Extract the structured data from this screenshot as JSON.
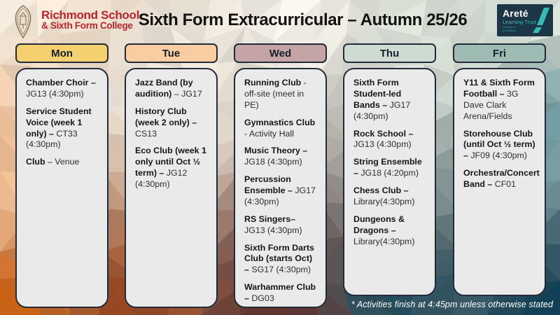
{
  "header": {
    "school_name_line1": "Richmond School",
    "school_name_line2": "& Sixth Form College",
    "school_name_color": "#b6252f",
    "title": "Sixth Form Extracurricular – Autumn 25/26",
    "trust": {
      "name": "Areté",
      "subtitle": "Learning Trust",
      "tagline_line1": "Striving for",
      "tagline_line2": "Excellence",
      "bg_color": "#1c3547",
      "accent_color": "#35bdb2"
    }
  },
  "columns": [
    {
      "day": "Mon",
      "color": "#f5d06f",
      "items": [
        {
          "bold": "Chamber Choir –",
          "rest": "JG13 (4:30pm)"
        },
        {
          "bold": "Service Student Voice (week 1 only) –",
          "rest": "CT33 (4:30pm)"
        },
        {
          "bold": "Club",
          "rest": "– Venue"
        }
      ]
    },
    {
      "day": "Tue",
      "color": "#f9cca1",
      "items": [
        {
          "bold": "Jazz Band (by audition)",
          "rest": "– JG17"
        },
        {
          "bold": "History Club (week 2 only) –",
          "rest": "CS13"
        },
        {
          "bold": "Eco Club (week 1 only until Oct ½ term) –",
          "rest": "JG12 (4:30pm)"
        }
      ]
    },
    {
      "day": "Wed",
      "color": "#c5a4a6",
      "items": [
        {
          "bold": "Running Club",
          "rest": "- off-site (meet in PE)"
        },
        {
          "bold": "Gymnastics Club",
          "rest": "- Activity Hall"
        },
        {
          "bold": "Music Theory –",
          "rest": "JG18 (4:30pm)"
        },
        {
          "bold": "Percussion Ensemble –",
          "rest": "JG17 (4:30pm)"
        },
        {
          "bold": "RS Singers–",
          "rest": "JG13 (4:30pm)"
        },
        {
          "bold": "Sixth Form Darts Club (starts Oct) –",
          "rest": "SG17 (4:30pm)"
        },
        {
          "bold": "Warhammer Club –",
          "rest": "DG03"
        }
      ]
    },
    {
      "day": "Thu",
      "color": "#cedbd3",
      "items": [
        {
          "bold": "Sixth Form Student-led Bands –",
          "rest": "JG17 (4:30pm)"
        },
        {
          "bold": "Rock School –",
          "rest": "JG13 (4:30pm)"
        },
        {
          "bold": "String Ensemble –",
          "rest": "JG18 (4:20pm)"
        },
        {
          "bold": "Chess Club –",
          "rest": "Library(4:30pm)"
        },
        {
          "bold": "Dungeons & Dragons –",
          "rest": "Library(4:30pm)"
        }
      ]
    },
    {
      "day": "Fri",
      "color": "#9fbcb4",
      "items": [
        {
          "bold": "Y11 & Sixth Form Football –",
          "rest": "3G Dave Clark Arena/Fields"
        },
        {
          "bold": "Storehouse Club (until Oct ½ term) –",
          "rest": "JF09 (4:30pm)"
        },
        {
          "bold": "Orchestra/Concert Band –",
          "rest": "CF01"
        }
      ]
    }
  ],
  "footer": {
    "note": "* Activities finish at 4:45pm unless otherwise stated"
  },
  "background_palette": {
    "cream_top_left": "#f7edde",
    "pale_cream_top": "#f3efe6",
    "sage_top_right": "#dce3d9",
    "mid_teal_right": "#6e99a0",
    "dark_teal_bottom_right": "#0e3c52",
    "deep_teal_bottom": "#1e4a5b",
    "maroon_bottom_center": "#5e2f2b",
    "brown_orange": "#94431e",
    "orange_bottom_left": "#c65e10",
    "peach_left": "#efbf97"
  }
}
